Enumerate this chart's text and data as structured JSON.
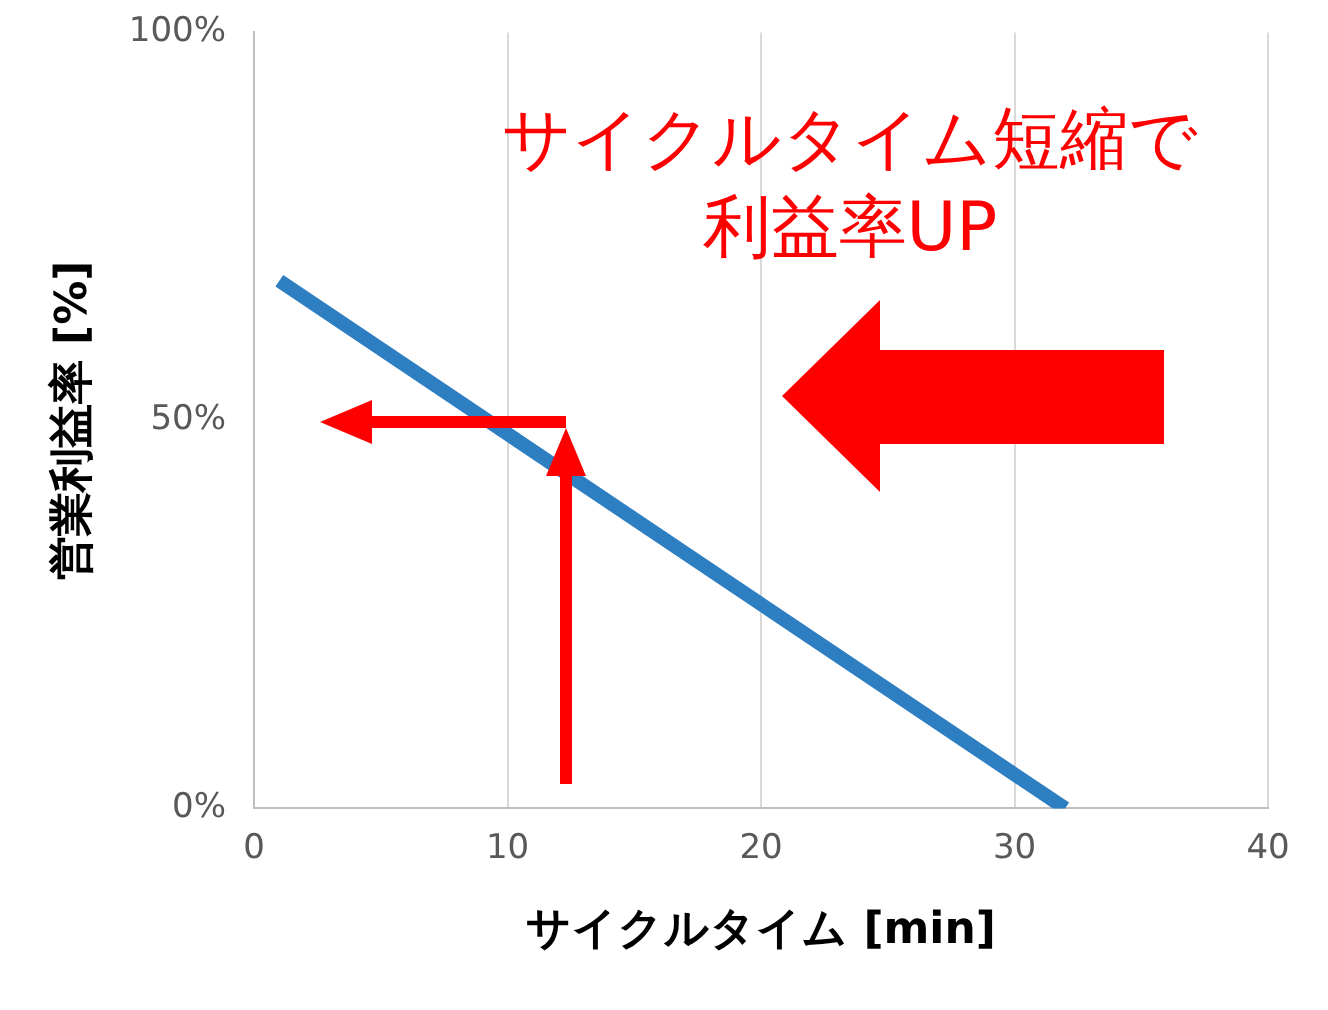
{
  "chart_data": {
    "type": "line",
    "xlabel": "サイクルタイム [min]",
    "ylabel": "営業利益率 [%]",
    "annotations": [
      "サイクルタイム短縮で利益率UP"
    ],
    "series": [
      {
        "color": "#2e7ec2",
        "x": [
          1,
          32
        ],
        "values": [
          68,
          0
        ]
      }
    ],
    "xlim": [
      0,
      40
    ],
    "xticks": [
      0,
      10,
      20,
      30,
      40
    ],
    "ylim": [
      0,
      100
    ],
    "yticks": [
      {
        "value": 0,
        "label": "0%"
      },
      {
        "value": 50,
        "label": "50%"
      },
      {
        "value": 100,
        "label": "100%"
      }
    ],
    "grid": "x",
    "legend": false,
    "marker": "none",
    "line_style": "solid"
  }
}
